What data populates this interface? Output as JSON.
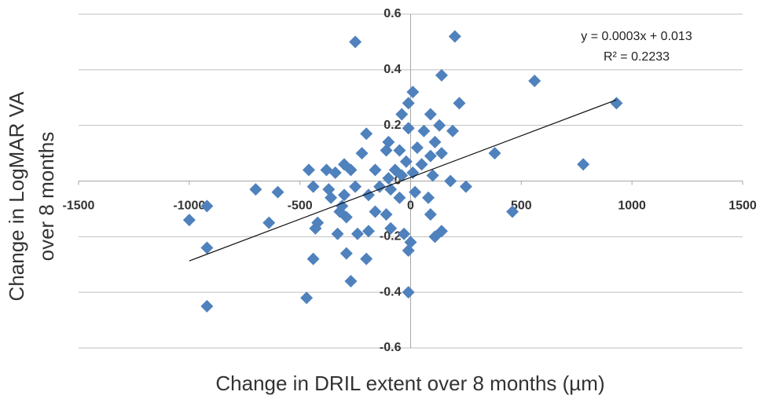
{
  "chart_data": {
    "type": "scatter",
    "xlabel": "Change in DRIL extent over 8 months (µm)",
    "ylabel": "Change in LogMAR VA over 8 months",
    "color": "#4f81bd",
    "xlim": [
      -1500,
      1500
    ],
    "xticks": [
      -1500,
      -1000,
      -500,
      0,
      500,
      1000,
      1500
    ],
    "ylim": [
      -0.6,
      0.6
    ],
    "yticks": [
      -0.6,
      -0.4,
      -0.2,
      0,
      0.2,
      0.4,
      0.6
    ],
    "grid": true,
    "trendline": {
      "equation": "y = 0.0003x + 0.013",
      "r2": "R² = 0.2233",
      "slope": 0.0003,
      "intercept": 0.013
    },
    "x": [
      -250,
      200,
      140,
      560,
      930,
      220,
      10,
      -10,
      -40,
      90,
      -10,
      130,
      190,
      60,
      -200,
      -100,
      110,
      380,
      -220,
      -110,
      -50,
      30,
      90,
      140,
      780,
      -300,
      -380,
      -460,
      -340,
      -270,
      -160,
      -70,
      -20,
      50,
      -40,
      10,
      100,
      180,
      -700,
      -600,
      -440,
      -250,
      250,
      -360,
      -300,
      -190,
      -90,
      -50,
      20,
      80,
      -920,
      -310,
      -290,
      -320,
      -160,
      -110,
      90,
      460,
      -1000,
      -640,
      -420,
      -430,
      -90,
      -190,
      -240,
      -330,
      -30,
      140,
      110,
      0,
      -10,
      -920,
      -290,
      -200,
      -440,
      -270,
      -470,
      -10,
      -920,
      -100,
      -140,
      -370
    ],
    "values": [
      0.5,
      0.52,
      0.38,
      0.36,
      0.28,
      0.28,
      0.32,
      0.28,
      0.24,
      0.24,
      0.19,
      0.2,
      0.18,
      0.18,
      0.17,
      0.14,
      0.14,
      0.1,
      0.1,
      0.11,
      0.11,
      0.12,
      0.09,
      0.1,
      0.06,
      0.06,
      0.04,
      0.04,
      0.03,
      0.04,
      0.04,
      0.04,
      0.07,
      0.06,
      0.02,
      0.03,
      0.02,
      0.0,
      -0.03,
      -0.04,
      -0.02,
      -0.02,
      -0.02,
      -0.06,
      -0.05,
      -0.05,
      -0.03,
      -0.06,
      -0.04,
      -0.06,
      -0.09,
      -0.09,
      -0.13,
      -0.11,
      -0.11,
      -0.12,
      -0.12,
      -0.11,
      -0.14,
      -0.15,
      -0.15,
      -0.17,
      -0.17,
      -0.18,
      -0.19,
      -0.19,
      -0.19,
      -0.18,
      -0.2,
      -0.22,
      -0.25,
      -0.24,
      -0.26,
      -0.28,
      -0.28,
      -0.36,
      -0.42,
      -0.4,
      -0.45,
      0.01,
      -0.02,
      -0.03
    ]
  }
}
